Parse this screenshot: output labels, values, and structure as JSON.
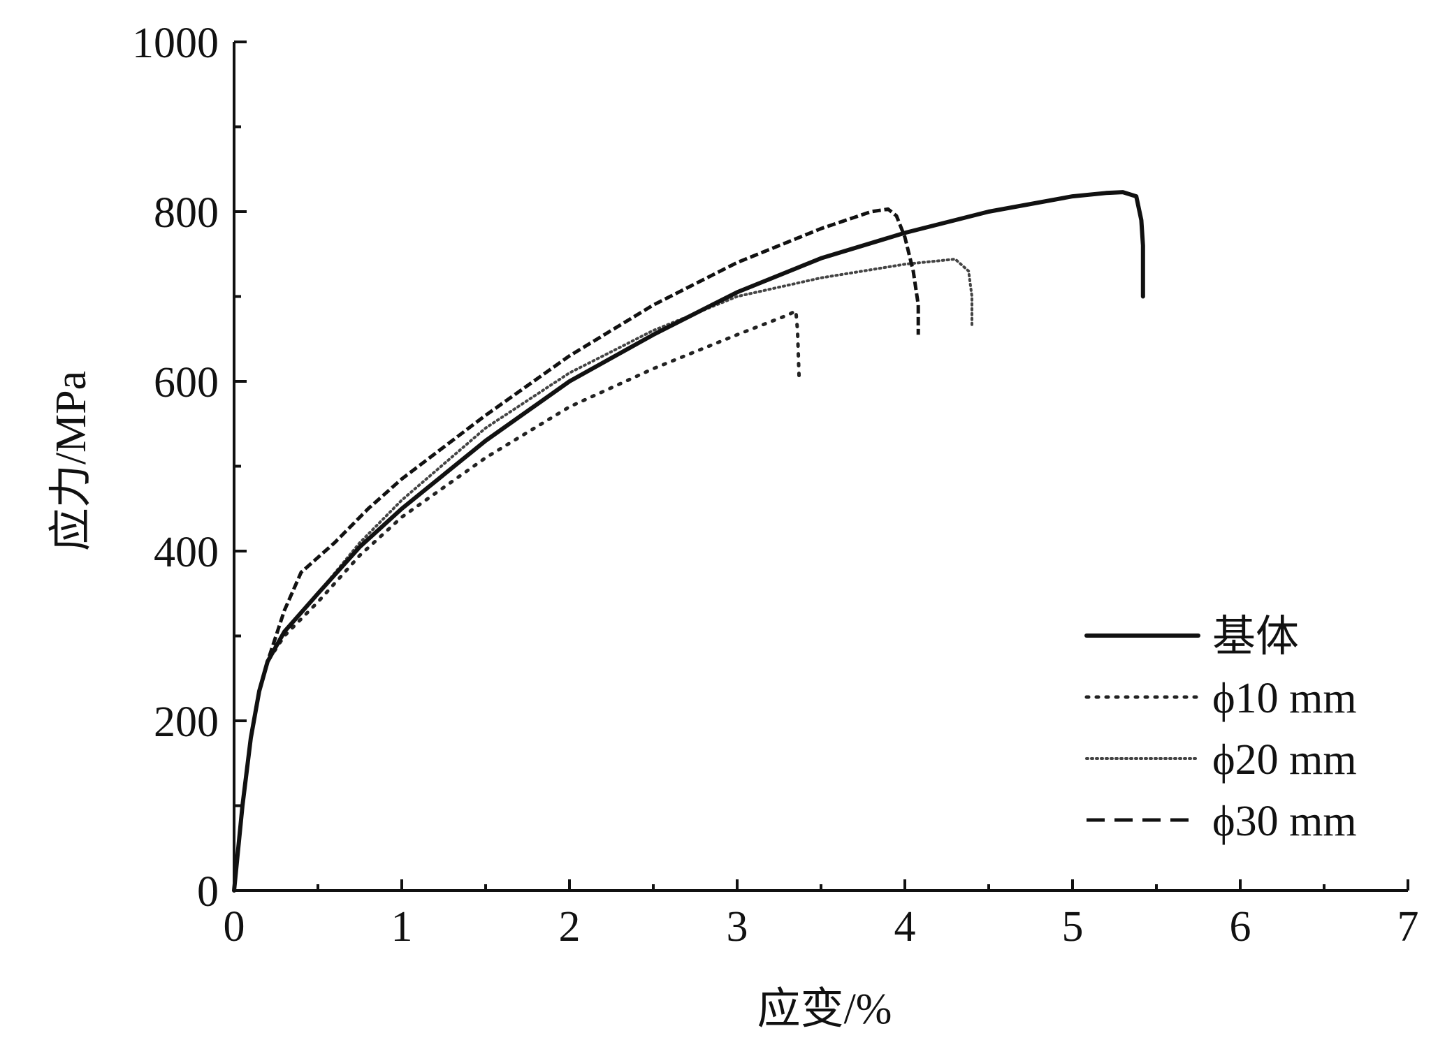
{
  "chart_data": {
    "type": "line",
    "xlabel": "应变/%",
    "ylabel": "应力/MPa",
    "xlim": [
      0,
      7
    ],
    "ylim": [
      0,
      1000
    ],
    "xticks": [
      "0",
      "1",
      "2",
      "3",
      "4",
      "5",
      "6",
      "7"
    ],
    "yticks": [
      "0",
      "200",
      "400",
      "600",
      "800",
      "1000"
    ],
    "grid": false,
    "legend_position": "bottom-right",
    "series": [
      {
        "name": "基体",
        "style": "solid",
        "color": "#111111",
        "points": [
          [
            0,
            0
          ],
          [
            0.05,
            100
          ],
          [
            0.1,
            180
          ],
          [
            0.15,
            235
          ],
          [
            0.2,
            270
          ],
          [
            0.3,
            305
          ],
          [
            0.5,
            350
          ],
          [
            0.75,
            405
          ],
          [
            1,
            450
          ],
          [
            1.5,
            530
          ],
          [
            2,
            600
          ],
          [
            2.5,
            655
          ],
          [
            3,
            705
          ],
          [
            3.5,
            745
          ],
          [
            4,
            775
          ],
          [
            4.5,
            800
          ],
          [
            5,
            818
          ],
          [
            5.2,
            822
          ],
          [
            5.3,
            823
          ],
          [
            5.38,
            818
          ],
          [
            5.41,
            790
          ],
          [
            5.42,
            760
          ],
          [
            5.42,
            700
          ]
        ]
      },
      {
        "name": "ϕ10 mm",
        "style": "dotted",
        "color": "#222222",
        "points": [
          [
            0,
            0
          ],
          [
            0.05,
            100
          ],
          [
            0.1,
            180
          ],
          [
            0.15,
            235
          ],
          [
            0.2,
            270
          ],
          [
            0.3,
            300
          ],
          [
            0.5,
            340
          ],
          [
            0.75,
            395
          ],
          [
            1,
            440
          ],
          [
            1.5,
            510
          ],
          [
            2,
            570
          ],
          [
            2.5,
            615
          ],
          [
            3,
            655
          ],
          [
            3.3,
            678
          ],
          [
            3.35,
            683
          ],
          [
            3.36,
            660
          ],
          [
            3.37,
            600
          ]
        ]
      },
      {
        "name": "ϕ20 mm",
        "style": "dense-dotted",
        "color": "#444444",
        "points": [
          [
            0,
            0
          ],
          [
            0.05,
            100
          ],
          [
            0.1,
            180
          ],
          [
            0.15,
            235
          ],
          [
            0.2,
            270
          ],
          [
            0.3,
            305
          ],
          [
            0.5,
            350
          ],
          [
            0.75,
            410
          ],
          [
            1,
            460
          ],
          [
            1.5,
            545
          ],
          [
            2,
            610
          ],
          [
            2.5,
            660
          ],
          [
            3,
            700
          ],
          [
            3.5,
            722
          ],
          [
            4,
            738
          ],
          [
            4.3,
            744
          ],
          [
            4.38,
            730
          ],
          [
            4.4,
            700
          ],
          [
            4.4,
            665
          ]
        ]
      },
      {
        "name": "ϕ30 mm",
        "style": "dashed",
        "color": "#111111",
        "points": [
          [
            0,
            0
          ],
          [
            0.05,
            100
          ],
          [
            0.1,
            180
          ],
          [
            0.15,
            235
          ],
          [
            0.2,
            270
          ],
          [
            0.3,
            330
          ],
          [
            0.4,
            375
          ],
          [
            0.6,
            410
          ],
          [
            0.8,
            450
          ],
          [
            1,
            485
          ],
          [
            1.5,
            560
          ],
          [
            2,
            630
          ],
          [
            2.5,
            690
          ],
          [
            3,
            740
          ],
          [
            3.5,
            780
          ],
          [
            3.8,
            800
          ],
          [
            3.9,
            803
          ],
          [
            3.95,
            795
          ],
          [
            4.0,
            770
          ],
          [
            4.05,
            730
          ],
          [
            4.08,
            690
          ],
          [
            4.08,
            655
          ]
        ]
      }
    ]
  }
}
